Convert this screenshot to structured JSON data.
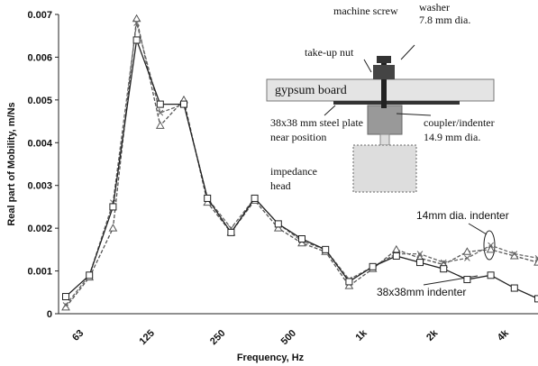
{
  "chart_data": {
    "type": "line",
    "xlabel": "Frequency, Hz",
    "ylabel": "Real part of Mobility, m/Ns",
    "categories": [
      null,
      "63",
      null,
      null,
      "125",
      null,
      null,
      "250",
      null,
      null,
      "500",
      null,
      null,
      "1k",
      null,
      null,
      "2k",
      null,
      null,
      "4k",
      null
    ],
    "ylim": [
      0,
      0.007
    ],
    "yticks": [
      0,
      0.001,
      0.002,
      0.003,
      0.004,
      0.005,
      0.006,
      0.007
    ],
    "series": [
      {
        "color": "#555555",
        "marker": "triangle",
        "dash": true,
        "values": [
          0.00015,
          0.00085,
          0.002,
          0.0069,
          0.0044,
          0.005,
          0.0026,
          0.0019,
          0.00265,
          0.002,
          0.00165,
          0.00145,
          0.00065,
          0.00105,
          0.0015,
          0.0013,
          0.00115,
          0.00145,
          0.0015,
          0.00135,
          0.0012
        ]
      },
      {
        "color": "#666666",
        "marker": "cross",
        "dash": true,
        "values": [
          0.0002,
          0.0009,
          0.0026,
          0.0068,
          0.0047,
          0.0049,
          0.0027,
          0.002,
          0.0027,
          0.0021,
          0.0017,
          0.0015,
          0.0008,
          0.0011,
          0.0014,
          0.0014,
          0.0012,
          0.0013,
          0.0016,
          0.0014,
          0.0013
        ]
      },
      {
        "color": "#222222",
        "marker": "square",
        "dash": false,
        "values": [
          0.0004,
          0.0009,
          0.0025,
          0.0064,
          0.0049,
          0.0049,
          0.0027,
          0.0019,
          0.0027,
          0.0021,
          0.00175,
          0.0015,
          0.00075,
          0.0011,
          0.00135,
          0.0012,
          0.00105,
          0.0008,
          0.0009,
          0.0006,
          0.00035
        ]
      }
    ],
    "annotations": [
      "14mm dia. indenter",
      "38x38mm indenter"
    ],
    "inset": [
      "machine screw",
      "washer",
      "7.8 mm dia.",
      "take-up nut",
      "gypsum board",
      "38x38 mm steel plate",
      "near position",
      "coupler/indenter",
      "14.9 mm dia.",
      "impedance",
      "head"
    ]
  }
}
